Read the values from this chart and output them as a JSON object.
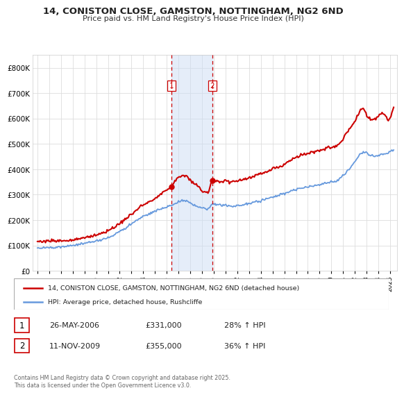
{
  "title": "14, CONISTON CLOSE, GAMSTON, NOTTINGHAM, NG2 6ND",
  "subtitle": "Price paid vs. HM Land Registry's House Price Index (HPI)",
  "legend_line1": "14, CONISTON CLOSE, GAMSTON, NOTTINGHAM, NG2 6ND (detached house)",
  "legend_line2": "HPI: Average price, detached house, Rushcliffe",
  "transaction1_date": "26-MAY-2006",
  "transaction1_price": "£331,000",
  "transaction1_hpi": "28% ↑ HPI",
  "transaction2_date": "11-NOV-2009",
  "transaction2_price": "£355,000",
  "transaction2_hpi": "36% ↑ HPI",
  "footer": "Contains HM Land Registry data © Crown copyright and database right 2025.\nThis data is licensed under the Open Government Licence v3.0.",
  "hpi_color": "#6699dd",
  "price_color": "#cc0000",
  "marker1_x": 2006.4,
  "marker2_x": 2009.87,
  "marker1_price": 331000,
  "marker2_price": 355000,
  "ylim_min": 0,
  "ylim_max": 850000,
  "background_color": "#ffffff",
  "plot_bg_color": "#ffffff"
}
